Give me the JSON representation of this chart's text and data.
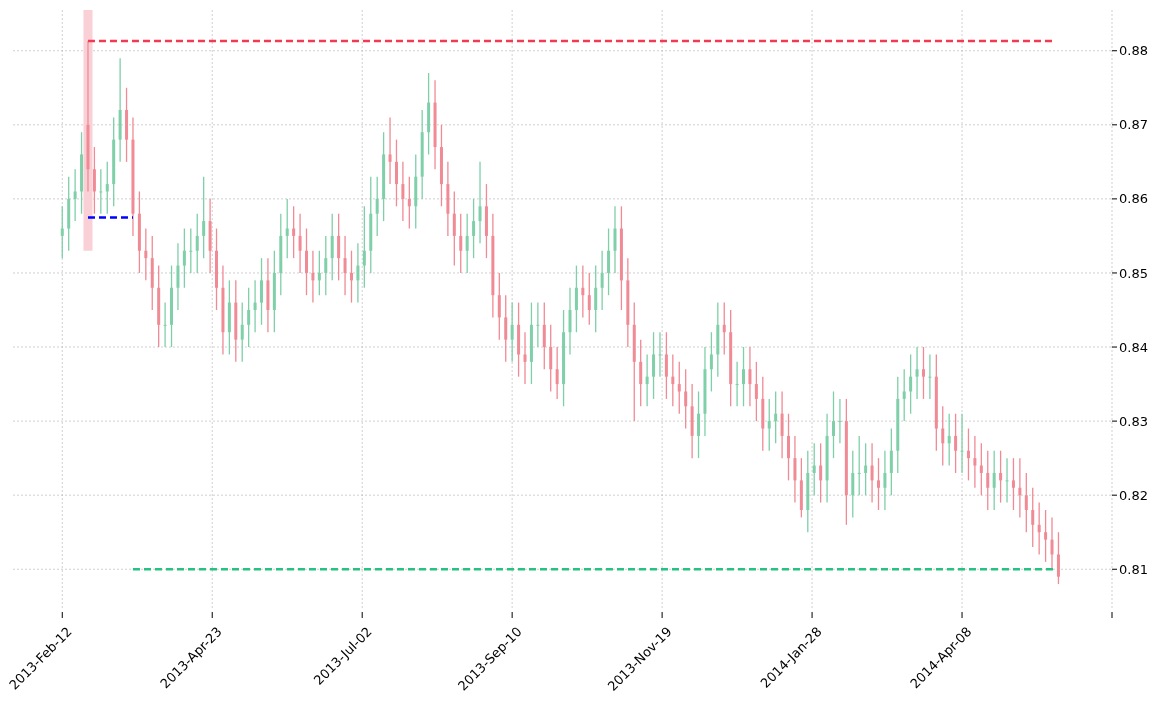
{
  "chart_data": {
    "type": "candlestick",
    "grid": true,
    "xlim": [
      "2013-01-20",
      "2014-06-17"
    ],
    "xticks": [
      {
        "value": "2013-02-12",
        "label": "2013-Feb-12"
      },
      {
        "value": "2013-04-23",
        "label": "2013-Apr-23"
      },
      {
        "value": "2013-07-02",
        "label": "2013-Jul-02"
      },
      {
        "value": "2013-09-10",
        "label": "2013-Sep-10"
      },
      {
        "value": "2013-11-19",
        "label": "2013-Nov-19"
      },
      {
        "value": "2014-01-28",
        "label": "2014-Jan-28"
      },
      {
        "value": "2014-04-08",
        "label": "2014-Apr-08"
      },
      {
        "value": "2014-06-17",
        "label": null
      }
    ],
    "ylim": [
      0.8045,
      0.8855
    ],
    "yticks": [
      {
        "value": 0.81,
        "label": "0.81"
      },
      {
        "value": 0.82,
        "label": "0.82"
      },
      {
        "value": 0.83,
        "label": "0.83"
      },
      {
        "value": 0.84,
        "label": "0.84"
      },
      {
        "value": 0.85,
        "label": "0.85"
      },
      {
        "value": 0.86,
        "label": "0.86"
      },
      {
        "value": 0.87,
        "label": "0.87"
      },
      {
        "value": 0.88,
        "label": "0.88"
      }
    ],
    "x": [
      "2013-02-12",
      "2013-02-15",
      "2013-02-18",
      "2013-02-21",
      "2013-02-24",
      "2013-02-27",
      "2013-03-02",
      "2013-03-05",
      "2013-03-08",
      "2013-03-11",
      "2013-03-14",
      "2013-03-17",
      "2013-03-20",
      "2013-03-23",
      "2013-03-26",
      "2013-03-29",
      "2013-04-01",
      "2013-04-04",
      "2013-04-07",
      "2013-04-10",
      "2013-04-13",
      "2013-04-16",
      "2013-04-19",
      "2013-04-22",
      "2013-04-25",
      "2013-04-28",
      "2013-05-01",
      "2013-05-04",
      "2013-05-07",
      "2013-05-10",
      "2013-05-13",
      "2013-05-16",
      "2013-05-19",
      "2013-05-22",
      "2013-05-25",
      "2013-05-28",
      "2013-05-31",
      "2013-06-03",
      "2013-06-06",
      "2013-06-09",
      "2013-06-12",
      "2013-06-15",
      "2013-06-18",
      "2013-06-21",
      "2013-06-24",
      "2013-06-27",
      "2013-06-30",
      "2013-07-03",
      "2013-07-06",
      "2013-07-09",
      "2013-07-12",
      "2013-07-15",
      "2013-07-18",
      "2013-07-21",
      "2013-07-24",
      "2013-07-27",
      "2013-07-30",
      "2013-08-02",
      "2013-08-05",
      "2013-08-08",
      "2013-08-11",
      "2013-08-14",
      "2013-08-17",
      "2013-08-20",
      "2013-08-23",
      "2013-08-26",
      "2013-08-29",
      "2013-09-01",
      "2013-09-04",
      "2013-09-07",
      "2013-09-10",
      "2013-09-13",
      "2013-09-16",
      "2013-09-19",
      "2013-09-22",
      "2013-09-25",
      "2013-09-28",
      "2013-10-01",
      "2013-10-04",
      "2013-10-07",
      "2013-10-10",
      "2013-10-13",
      "2013-10-16",
      "2013-10-19",
      "2013-10-22",
      "2013-10-25",
      "2013-10-28",
      "2013-10-31",
      "2013-11-03",
      "2013-11-06",
      "2013-11-09",
      "2013-11-12",
      "2013-11-15",
      "2013-11-18",
      "2013-11-21",
      "2013-11-24",
      "2013-11-27",
      "2013-11-30",
      "2013-12-03",
      "2013-12-06",
      "2013-12-09",
      "2013-12-12",
      "2013-12-15",
      "2013-12-18",
      "2013-12-21",
      "2013-12-24",
      "2013-12-27",
      "2013-12-30",
      "2014-01-02",
      "2014-01-05",
      "2014-01-08",
      "2014-01-11",
      "2014-01-14",
      "2014-01-17",
      "2014-01-20",
      "2014-01-23",
      "2014-01-26",
      "2014-01-29",
      "2014-02-01",
      "2014-02-04",
      "2014-02-07",
      "2014-02-10",
      "2014-02-13",
      "2014-02-16",
      "2014-02-19",
      "2014-02-22",
      "2014-02-25",
      "2014-02-28",
      "2014-03-03",
      "2014-03-06",
      "2014-03-09",
      "2014-03-12",
      "2014-03-15",
      "2014-03-18",
      "2014-03-21",
      "2014-03-24",
      "2014-03-27",
      "2014-03-30",
      "2014-04-02",
      "2014-04-05",
      "2014-04-08",
      "2014-04-11",
      "2014-04-14",
      "2014-04-17",
      "2014-04-20",
      "2014-04-23",
      "2014-04-26",
      "2014-04-29",
      "2014-05-02",
      "2014-05-05",
      "2014-05-08",
      "2014-05-11",
      "2014-05-14",
      "2014-05-17",
      "2014-05-20",
      "2014-05-23"
    ],
    "ohlc": [
      [
        0.855,
        0.859,
        0.852,
        0.856
      ],
      [
        0.856,
        0.863,
        0.853,
        0.86
      ],
      [
        0.86,
        0.864,
        0.857,
        0.861
      ],
      [
        0.861,
        0.869,
        0.858,
        0.866
      ],
      [
        0.87,
        0.8813,
        0.861,
        0.864
      ],
      [
        0.864,
        0.867,
        0.858,
        0.861
      ],
      [
        0.861,
        0.864,
        0.858,
        0.861
      ],
      [
        0.861,
        0.865,
        0.858,
        0.862
      ],
      [
        0.862,
        0.871,
        0.859,
        0.868
      ],
      [
        0.868,
        0.879,
        0.865,
        0.872
      ],
      [
        0.872,
        0.875,
        0.865,
        0.868
      ],
      [
        0.868,
        0.871,
        0.855,
        0.858
      ],
      [
        0.858,
        0.861,
        0.85,
        0.853
      ],
      [
        0.853,
        0.856,
        0.849,
        0.852
      ],
      [
        0.852,
        0.855,
        0.845,
        0.848
      ],
      [
        0.848,
        0.851,
        0.84,
        0.843
      ],
      [
        0.843,
        0.846,
        0.84,
        0.843
      ],
      [
        0.843,
        0.851,
        0.84,
        0.848
      ],
      [
        0.848,
        0.854,
        0.845,
        0.851
      ],
      [
        0.851,
        0.856,
        0.848,
        0.853
      ],
      [
        0.853,
        0.856,
        0.85,
        0.853
      ],
      [
        0.853,
        0.858,
        0.85,
        0.855
      ],
      [
        0.855,
        0.863,
        0.852,
        0.857
      ],
      [
        0.857,
        0.86,
        0.85,
        0.853
      ],
      [
        0.853,
        0.856,
        0.845,
        0.848
      ],
      [
        0.848,
        0.851,
        0.839,
        0.842
      ],
      [
        0.842,
        0.849,
        0.839,
        0.846
      ],
      [
        0.846,
        0.849,
        0.838,
        0.841
      ],
      [
        0.841,
        0.846,
        0.838,
        0.843
      ],
      [
        0.843,
        0.848,
        0.84,
        0.845
      ],
      [
        0.845,
        0.849,
        0.842,
        0.846
      ],
      [
        0.846,
        0.852,
        0.843,
        0.849
      ],
      [
        0.849,
        0.852,
        0.842,
        0.845
      ],
      [
        0.845,
        0.853,
        0.842,
        0.85
      ],
      [
        0.85,
        0.858,
        0.847,
        0.855
      ],
      [
        0.855,
        0.86,
        0.852,
        0.856
      ],
      [
        0.856,
        0.859,
        0.852,
        0.855
      ],
      [
        0.855,
        0.858,
        0.85,
        0.853
      ],
      [
        0.853,
        0.856,
        0.847,
        0.85
      ],
      [
        0.85,
        0.853,
        0.846,
        0.849
      ],
      [
        0.849,
        0.853,
        0.847,
        0.85
      ],
      [
        0.85,
        0.855,
        0.847,
        0.852
      ],
      [
        0.852,
        0.858,
        0.849,
        0.855
      ],
      [
        0.855,
        0.858,
        0.849,
        0.852
      ],
      [
        0.852,
        0.855,
        0.847,
        0.85
      ],
      [
        0.85,
        0.853,
        0.846,
        0.849
      ],
      [
        0.849,
        0.854,
        0.846,
        0.851
      ],
      [
        0.851,
        0.859,
        0.848,
        0.853
      ],
      [
        0.853,
        0.863,
        0.85,
        0.858
      ],
      [
        0.858,
        0.863,
        0.855,
        0.86
      ],
      [
        0.86,
        0.869,
        0.857,
        0.866
      ],
      [
        0.866,
        0.871,
        0.862,
        0.865
      ],
      [
        0.865,
        0.868,
        0.859,
        0.862
      ],
      [
        0.862,
        0.865,
        0.857,
        0.86
      ],
      [
        0.86,
        0.863,
        0.856,
        0.859
      ],
      [
        0.859,
        0.866,
        0.856,
        0.863
      ],
      [
        0.863,
        0.872,
        0.86,
        0.869
      ],
      [
        0.869,
        0.877,
        0.866,
        0.873
      ],
      [
        0.873,
        0.876,
        0.864,
        0.867
      ],
      [
        0.867,
        0.87,
        0.859,
        0.862
      ],
      [
        0.862,
        0.865,
        0.855,
        0.858
      ],
      [
        0.858,
        0.861,
        0.851,
        0.855
      ],
      [
        0.855,
        0.858,
        0.85,
        0.853
      ],
      [
        0.853,
        0.858,
        0.85,
        0.855
      ],
      [
        0.855,
        0.86,
        0.852,
        0.857
      ],
      [
        0.857,
        0.865,
        0.854,
        0.859
      ],
      [
        0.859,
        0.862,
        0.852,
        0.855
      ],
      [
        0.855,
        0.858,
        0.844,
        0.847
      ],
      [
        0.847,
        0.85,
        0.841,
        0.844
      ],
      [
        0.844,
        0.847,
        0.838,
        0.841
      ],
      [
        0.841,
        0.846,
        0.838,
        0.843
      ],
      [
        0.843,
        0.846,
        0.836,
        0.839
      ],
      [
        0.839,
        0.842,
        0.835,
        0.838
      ],
      [
        0.838,
        0.846,
        0.835,
        0.843
      ],
      [
        0.843,
        0.846,
        0.84,
        0.843
      ],
      [
        0.843,
        0.846,
        0.837,
        0.84
      ],
      [
        0.84,
        0.843,
        0.834,
        0.837
      ],
      [
        0.837,
        0.84,
        0.833,
        0.835
      ],
      [
        0.835,
        0.845,
        0.832,
        0.842
      ],
      [
        0.842,
        0.848,
        0.839,
        0.845
      ],
      [
        0.845,
        0.851,
        0.842,
        0.848
      ],
      [
        0.848,
        0.851,
        0.844,
        0.847
      ],
      [
        0.847,
        0.85,
        0.843,
        0.845
      ],
      [
        0.845,
        0.851,
        0.842,
        0.848
      ],
      [
        0.848,
        0.853,
        0.845,
        0.85
      ],
      [
        0.85,
        0.856,
        0.847,
        0.853
      ],
      [
        0.853,
        0.859,
        0.85,
        0.856
      ],
      [
        0.856,
        0.859,
        0.845,
        0.849
      ],
      [
        0.849,
        0.852,
        0.84,
        0.843
      ],
      [
        0.843,
        0.846,
        0.83,
        0.838
      ],
      [
        0.838,
        0.841,
        0.832,
        0.835
      ],
      [
        0.835,
        0.839,
        0.832,
        0.836
      ],
      [
        0.836,
        0.842,
        0.833,
        0.839
      ],
      [
        0.839,
        0.842,
        0.836,
        0.839
      ],
      [
        0.839,
        0.842,
        0.833,
        0.836
      ],
      [
        0.836,
        0.839,
        0.832,
        0.835
      ],
      [
        0.835,
        0.838,
        0.831,
        0.834
      ],
      [
        0.834,
        0.837,
        0.829,
        0.832
      ],
      [
        0.832,
        0.835,
        0.825,
        0.828
      ],
      [
        0.828,
        0.834,
        0.825,
        0.831
      ],
      [
        0.831,
        0.84,
        0.828,
        0.837
      ],
      [
        0.837,
        0.842,
        0.834,
        0.839
      ],
      [
        0.839,
        0.846,
        0.836,
        0.843
      ],
      [
        0.843,
        0.846,
        0.839,
        0.842
      ],
      [
        0.842,
        0.845,
        0.832,
        0.835
      ],
      [
        0.835,
        0.838,
        0.832,
        0.835
      ],
      [
        0.835,
        0.84,
        0.832,
        0.837
      ],
      [
        0.837,
        0.84,
        0.832,
        0.835
      ],
      [
        0.835,
        0.838,
        0.83,
        0.833
      ],
      [
        0.833,
        0.836,
        0.826,
        0.829
      ],
      [
        0.829,
        0.833,
        0.826,
        0.83
      ],
      [
        0.83,
        0.834,
        0.827,
        0.831
      ],
      [
        0.831,
        0.834,
        0.825,
        0.828
      ],
      [
        0.828,
        0.831,
        0.822,
        0.825
      ],
      [
        0.825,
        0.828,
        0.819,
        0.822
      ],
      [
        0.822,
        0.825,
        0.817,
        0.818
      ],
      [
        0.818,
        0.826,
        0.815,
        0.823
      ],
      [
        0.823,
        0.827,
        0.82,
        0.824
      ],
      [
        0.824,
        0.827,
        0.819,
        0.822
      ],
      [
        0.822,
        0.831,
        0.819,
        0.828
      ],
      [
        0.828,
        0.834,
        0.825,
        0.83
      ],
      [
        0.83,
        0.833,
        0.827,
        0.83
      ],
      [
        0.83,
        0.833,
        0.816,
        0.82
      ],
      [
        0.82,
        0.826,
        0.817,
        0.823
      ],
      [
        0.823,
        0.828,
        0.82,
        0.823
      ],
      [
        0.823,
        0.827,
        0.82,
        0.824
      ],
      [
        0.824,
        0.827,
        0.819,
        0.822
      ],
      [
        0.822,
        0.825,
        0.818,
        0.821
      ],
      [
        0.821,
        0.826,
        0.818,
        0.823
      ],
      [
        0.823,
        0.829,
        0.82,
        0.826
      ],
      [
        0.826,
        0.836,
        0.823,
        0.833
      ],
      [
        0.833,
        0.837,
        0.83,
        0.834
      ],
      [
        0.834,
        0.839,
        0.831,
        0.836
      ],
      [
        0.836,
        0.84,
        0.833,
        0.837
      ],
      [
        0.837,
        0.84,
        0.833,
        0.836
      ],
      [
        0.836,
        0.839,
        0.833,
        0.836
      ],
      [
        0.836,
        0.839,
        0.826,
        0.829
      ],
      [
        0.829,
        0.832,
        0.824,
        0.827
      ],
      [
        0.827,
        0.831,
        0.824,
        0.828
      ],
      [
        0.828,
        0.831,
        0.823,
        0.826
      ],
      [
        0.826,
        0.831,
        0.823,
        0.826
      ],
      [
        0.826,
        0.829,
        0.822,
        0.825
      ],
      [
        0.825,
        0.828,
        0.821,
        0.824
      ],
      [
        0.824,
        0.827,
        0.82,
        0.823
      ],
      [
        0.823,
        0.826,
        0.818,
        0.821
      ],
      [
        0.821,
        0.826,
        0.818,
        0.823
      ],
      [
        0.823,
        0.826,
        0.819,
        0.822
      ],
      [
        0.822,
        0.825,
        0.819,
        0.822
      ],
      [
        0.822,
        0.825,
        0.818,
        0.821
      ],
      [
        0.821,
        0.825,
        0.817,
        0.82
      ],
      [
        0.82,
        0.823,
        0.815,
        0.818
      ],
      [
        0.818,
        0.821,
        0.813,
        0.816
      ],
      [
        0.816,
        0.819,
        0.812,
        0.815
      ],
      [
        0.815,
        0.818,
        0.811,
        0.814
      ],
      [
        0.814,
        0.817,
        0.81,
        0.812
      ],
      [
        0.812,
        0.815,
        0.808,
        0.809
      ]
    ],
    "series": [
      {
        "type": "bar",
        "x": [
          "2013-02-24"
        ],
        "base": [
          0.853
        ],
        "values": [
          0.0325
        ],
        "color": "#f9d0d6"
      },
      {
        "type": "line",
        "x": [
          "2013-02-24",
          "2014-05-21"
        ],
        "values": [
          0.8813,
          0.8813
        ],
        "color": "#f23b52",
        "line_style": "dashed"
      },
      {
        "type": "line",
        "x": [
          "2013-02-24",
          "2013-03-17"
        ],
        "values": [
          0.8575,
          0.8575
        ],
        "color": "#0000ff",
        "line_style": "dashed"
      },
      {
        "type": "line",
        "x": [
          "2013-03-17",
          "2014-05-21"
        ],
        "values": [
          0.81,
          0.81
        ],
        "color": "#26c281",
        "line_style": "dashed"
      }
    ]
  }
}
